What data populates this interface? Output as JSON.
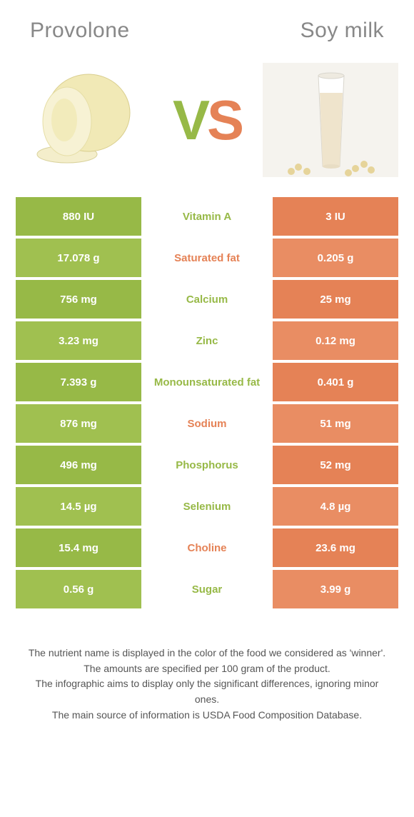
{
  "titles": {
    "left": "Provolone",
    "right": "Soy milk"
  },
  "vs": {
    "v": "V",
    "s": "S"
  },
  "colors": {
    "green_a": "#97b947",
    "green_b": "#a0c050",
    "orange_a": "#e58256",
    "orange_b": "#e98d63"
  },
  "table": {
    "left_bg_pattern": [
      "bg-green-a",
      "bg-green-b"
    ],
    "right_bg_pattern": [
      "bg-orange-a",
      "bg-orange-b"
    ],
    "rows": [
      {
        "left": "880 IU",
        "nutrient": "Vitamin A",
        "right": "3 IU",
        "winner": "left"
      },
      {
        "left": "17.078 g",
        "nutrient": "Saturated fat",
        "right": "0.205 g",
        "winner": "right"
      },
      {
        "left": "756 mg",
        "nutrient": "Calcium",
        "right": "25 mg",
        "winner": "left"
      },
      {
        "left": "3.23 mg",
        "nutrient": "Zinc",
        "right": "0.12 mg",
        "winner": "left"
      },
      {
        "left": "7.393 g",
        "nutrient": "Monounsaturated fat",
        "right": "0.401 g",
        "winner": "left"
      },
      {
        "left": "876 mg",
        "nutrient": "Sodium",
        "right": "51 mg",
        "winner": "right"
      },
      {
        "left": "496 mg",
        "nutrient": "Phosphorus",
        "right": "52 mg",
        "winner": "left"
      },
      {
        "left": "14.5 µg",
        "nutrient": "Selenium",
        "right": "4.8 µg",
        "winner": "left"
      },
      {
        "left": "15.4 mg",
        "nutrient": "Choline",
        "right": "23.6 mg",
        "winner": "right"
      },
      {
        "left": "0.56 g",
        "nutrient": "Sugar",
        "right": "3.99 g",
        "winner": "left"
      }
    ]
  },
  "footer": {
    "line1": "The nutrient name is displayed in the color of the food we considered as 'winner'.",
    "line2": "The amounts are specified per 100 gram of the product.",
    "line3": "The infographic aims to display only the significant differences, ignoring minor ones.",
    "line4": "The main source of information is USDA Food Composition Database."
  }
}
